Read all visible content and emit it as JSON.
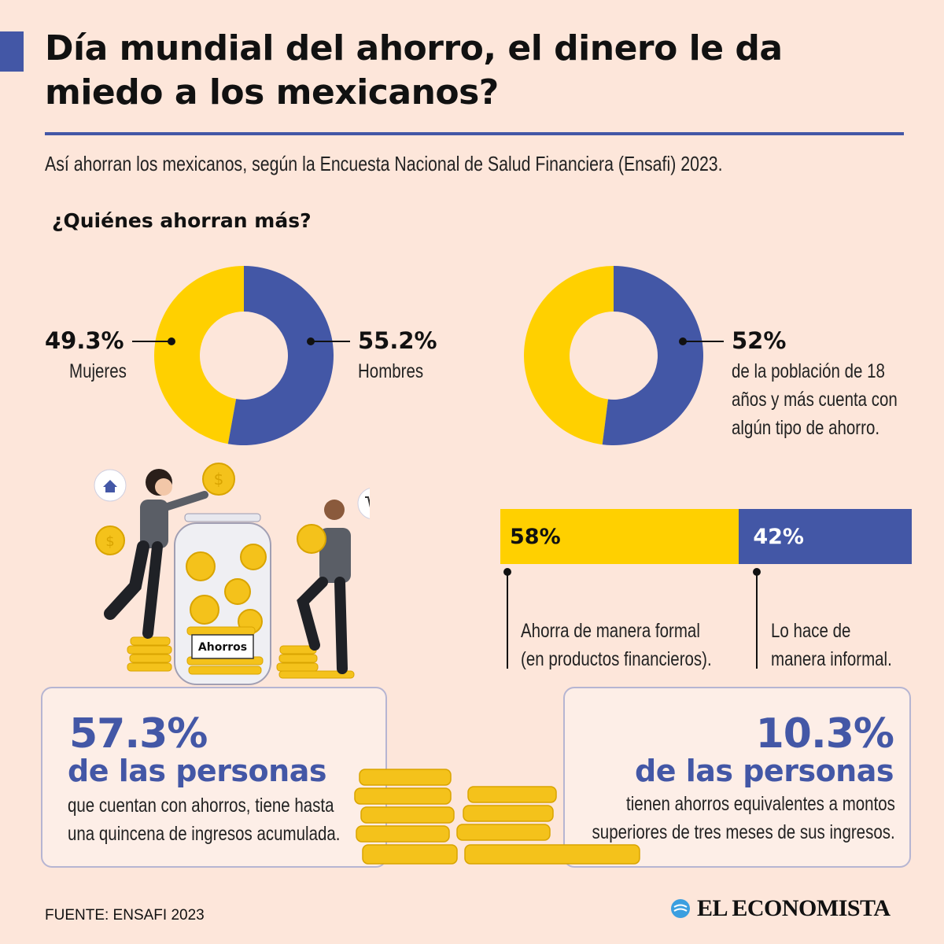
{
  "header": {
    "title": "Día mundial del ahorro, el dinero le da miedo a los mexicanos?",
    "subtitle": "Así ahorran los mexicanos, según la Encuesta Nacional de Salud Financiera (Ensafi) 2023."
  },
  "section": {
    "heading": "¿Quiénes ahorran más?"
  },
  "colors": {
    "yellow": "#ffd000",
    "blue": "#4357a6",
    "background": "#fde6da"
  },
  "chart_data": [
    {
      "type": "pie",
      "title": "",
      "slices": [
        {
          "label": "Mujeres",
          "value": 49.3,
          "display": "49.3%",
          "color": "#ffd000"
        },
        {
          "label": "Hombres",
          "value": 55.2,
          "display": "55.2%",
          "color": "#4357a6"
        }
      ]
    },
    {
      "type": "pie",
      "title": "",
      "slices": [
        {
          "label": "de la población de 18 años y más cuenta con algún tipo de ahorro.",
          "value": 52,
          "display": "52%",
          "color": "#4357a6"
        },
        {
          "label": "",
          "value": 48,
          "display": "",
          "color": "#ffd000"
        }
      ],
      "label_lines": [
        "de la población de 18",
        "años y más cuenta con",
        "algún tipo de ahorro."
      ]
    },
    {
      "type": "bar",
      "stacked": true,
      "orientation": "horizontal",
      "categories": [
        "Ahorra de manera formal (en productos financieros).",
        "Lo hace de manera informal."
      ],
      "values": [
        58,
        42
      ],
      "display": [
        "58%",
        "42%"
      ],
      "label_lines": [
        [
          "Ahorra de manera formal",
          "(en productos financieros)."
        ],
        [
          "Lo hace de",
          "manera informal."
        ]
      ],
      "colors": [
        "#ffd000",
        "#4357a6"
      ]
    }
  ],
  "illustration": {
    "jar_label": "Ahorros"
  },
  "cards": [
    {
      "value": "57.3%",
      "headline": "de las personas",
      "lines": [
        "que cuentan con ahorros, tiene hasta",
        "una quincena de ingresos acumulada."
      ]
    },
    {
      "value": "10.3%",
      "headline": "de las personas",
      "lines": [
        "tienen ahorros equivalentes a montos",
        "superiores de tres meses de sus ingresos."
      ]
    }
  ],
  "footer": {
    "source": "FUENTE: ENSAFI 2023",
    "brand": "EL ECONOMISTA"
  }
}
